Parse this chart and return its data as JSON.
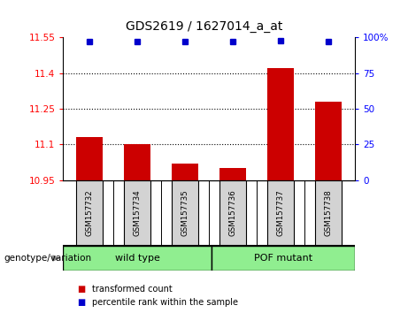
{
  "title": "GDS2619 / 1627014_a_at",
  "samples": [
    "GSM157732",
    "GSM157734",
    "GSM157735",
    "GSM157736",
    "GSM157737",
    "GSM157738"
  ],
  "bar_values": [
    11.13,
    11.1,
    11.02,
    11.0,
    11.42,
    11.28
  ],
  "percentile_y": [
    11.535,
    11.535,
    11.535,
    11.535,
    11.538,
    11.535
  ],
  "ylim": [
    10.95,
    11.55
  ],
  "y2lim": [
    0,
    100
  ],
  "yticks": [
    10.95,
    11.1,
    11.25,
    11.4,
    11.55
  ],
  "y2ticks": [
    0,
    25,
    50,
    75,
    100
  ],
  "ytick_labels": [
    "10.95",
    "11.1",
    "11.25",
    "11.4",
    "11.55"
  ],
  "y2tick_labels": [
    "0",
    "25",
    "50",
    "75",
    "100%"
  ],
  "bar_color": "#cc0000",
  "dot_color": "#0000cc",
  "wild_type_label": "wild type",
  "pof_mutant_label": "POF mutant",
  "group_bg_color": "#90ee90",
  "sample_bg_color": "#d3d3d3",
  "legend_red_label": "transformed count",
  "legend_blue_label": "percentile rank within the sample",
  "genotype_label": "genotype/variation",
  "bar_width": 0.55,
  "bar_bottom": 10.95,
  "dotted_lines": [
    11.1,
    11.25,
    11.4
  ]
}
